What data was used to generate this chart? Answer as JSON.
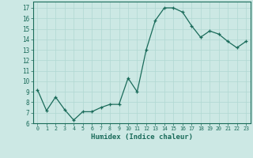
{
  "x_data": [
    0,
    1,
    2,
    3,
    4,
    5,
    6,
    7,
    8,
    9,
    10,
    11,
    12,
    13,
    14,
    15,
    16,
    17,
    18,
    19,
    20,
    21,
    22,
    23
  ],
  "y_data": [
    9.2,
    7.2,
    8.5,
    7.3,
    6.3,
    7.1,
    7.1,
    7.5,
    7.8,
    7.8,
    10.3,
    9.0,
    13.0,
    15.8,
    17.0,
    17.0,
    16.6,
    15.3,
    14.2,
    14.8,
    14.5,
    13.8,
    13.2,
    13.8
  ],
  "background_color": "#cce8e4",
  "line_color": "#1a6b5a",
  "grid_color": "#b0d8d2",
  "xlabel": "Humidex (Indice chaleur)",
  "yticks": [
    6,
    7,
    8,
    9,
    10,
    11,
    12,
    13,
    14,
    15,
    16,
    17
  ],
  "xtick_labels": [
    "0",
    "1",
    "2",
    "3",
    "4",
    "5",
    "6",
    "7",
    "8",
    "9",
    "10",
    "11",
    "12",
    "13",
    "14",
    "15",
    "16",
    "17",
    "18",
    "19",
    "20",
    "21",
    "22",
    "23"
  ],
  "ylim_min": 6,
  "ylim_max": 17.6,
  "xlim_min": -0.5,
  "xlim_max": 23.5
}
